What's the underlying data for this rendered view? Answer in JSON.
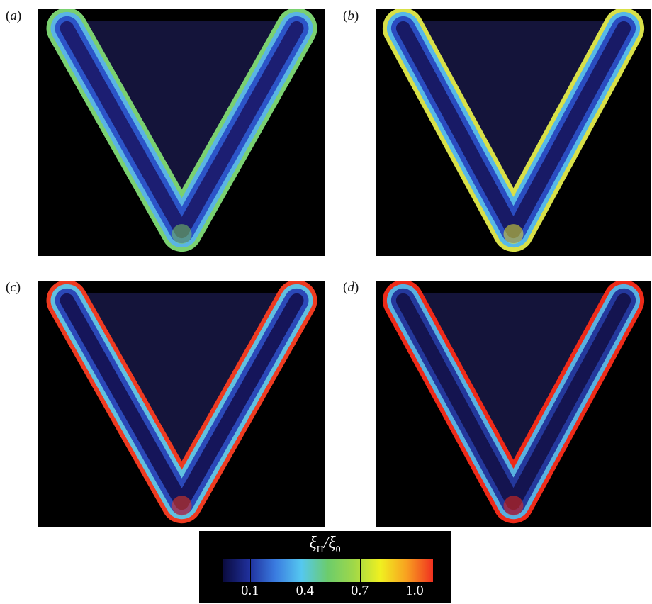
{
  "panels": [
    {
      "id": "a",
      "label": "a",
      "inner_colors": [
        "#1c1e72",
        "#2c54c8",
        "#5ab4e4"
      ],
      "rim_color": "#7ad070",
      "tip_color": "#7cc860"
    },
    {
      "id": "b",
      "label": "b",
      "inner_colors": [
        "#181a66",
        "#2a4cc0",
        "#56b8e8"
      ],
      "rim_color": "#d8e048",
      "tip_color": "#e8e830"
    },
    {
      "id": "c",
      "label": "c",
      "inner_colors": [
        "#15155a",
        "#2b48b8",
        "#60c0e0"
      ],
      "rim_color": "#ee3a20",
      "tip_color": "#ee3a20"
    },
    {
      "id": "d",
      "label": "d",
      "inner_colors": [
        "#141450",
        "#24389c",
        "#58b0e0"
      ],
      "rim_color": "#ee2a18",
      "tip_color": "#ee2a18"
    }
  ],
  "colorbar": {
    "title_main": "ξ",
    "title_sub1": "H",
    "title_sep": "/ξ",
    "title_sub2": "0",
    "ticks": [
      {
        "label": "0.1",
        "value": 0.1
      },
      {
        "label": "0.4",
        "value": 0.4
      },
      {
        "label": "0.7",
        "value": 0.7
      },
      {
        "label": "1.0",
        "value": 1.0
      }
    ],
    "gradient_stops": [
      "#0a0a3c",
      "#1f2f9a",
      "#3a7be0",
      "#55c8f0",
      "#6ccc6c",
      "#a0d848",
      "#f0f020",
      "#f8a020",
      "#f03020"
    ]
  }
}
